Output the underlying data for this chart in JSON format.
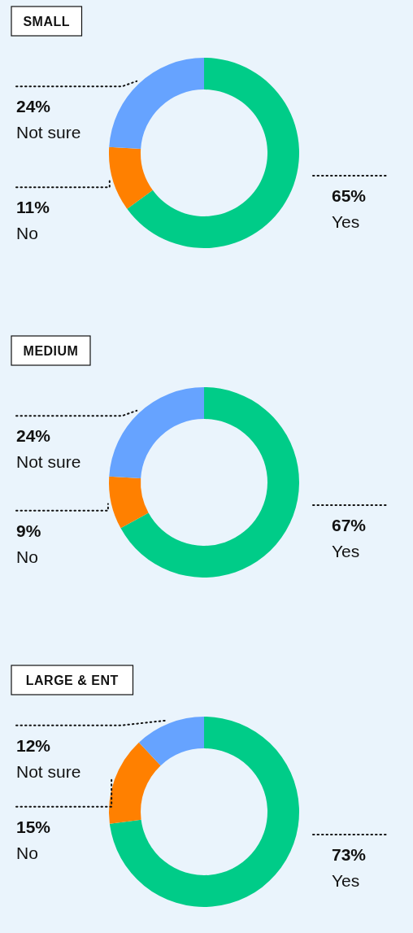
{
  "chart_data": [
    {
      "type": "donut",
      "title": "SMALL",
      "categories": [
        "Yes",
        "No",
        "Not sure"
      ],
      "values": [
        65,
        11,
        24
      ],
      "colors": [
        "#00cc88",
        "#ff8000",
        "#66a3ff"
      ],
      "value_labels": [
        "65%",
        "11%",
        "24%"
      ]
    },
    {
      "type": "donut",
      "title": "MEDIUM",
      "categories": [
        "Yes",
        "No",
        "Not sure"
      ],
      "values": [
        67,
        9,
        24
      ],
      "colors": [
        "#00cc88",
        "#ff8000",
        "#66a3ff"
      ],
      "value_labels": [
        "67%",
        "9%",
        "24%"
      ]
    },
    {
      "type": "donut",
      "title": "LARGE & ENT",
      "categories": [
        "Yes",
        "No",
        "Not sure"
      ],
      "values": [
        73,
        15,
        12
      ],
      "colors": [
        "#00cc88",
        "#ff8000",
        "#66a3ff"
      ],
      "value_labels": [
        "73%",
        "15%",
        "12%"
      ]
    }
  ]
}
